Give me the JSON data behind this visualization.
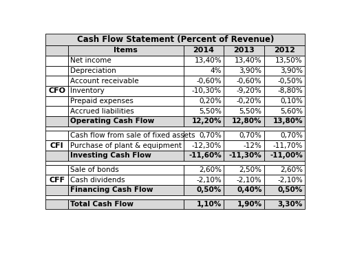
{
  "title": "Cash Flow Statement (Percent of Revenue)",
  "col_headers": [
    "Items",
    "2014",
    "2013",
    "2012"
  ],
  "sections": [
    {
      "label": "CFO",
      "rows": [
        [
          "Net income",
          "13,40%",
          "13,40%",
          "13,50%"
        ],
        [
          "Depreciation",
          "4%",
          "3,90%",
          "3,90%"
        ],
        [
          "Account receivable",
          "-0,60%",
          "-0,60%",
          "-0,50%"
        ],
        [
          "Inventory",
          "-10,30%",
          "-9,20%",
          "-8,80%"
        ],
        [
          "Prepaid expenses",
          "0,20%",
          "-0,20%",
          "0,10%"
        ],
        [
          "Accrued liabilities",
          "5,50%",
          "5,50%",
          "5,60%"
        ],
        [
          "Operating Cash Flow",
          "12,20%",
          "12,80%",
          "13,80%"
        ]
      ]
    },
    {
      "label": "CFI",
      "rows": [
        [
          "Cash flow from sale of fixed assets",
          "0,70%",
          "0,70%",
          "0,70%"
        ],
        [
          "Purchase of plant & equipment",
          "-12,30%",
          "-12%",
          "-11,70%"
        ],
        [
          "Investing Cash Flow",
          "-11,60%",
          "-11,30%",
          "-11,00%"
        ]
      ]
    },
    {
      "label": "CFF",
      "rows": [
        [
          "Sale of bonds",
          "2,60%",
          "2,50%",
          "2,60%"
        ],
        [
          "Cash dividends",
          "-2,10%",
          "-2,10%",
          "-2,10%"
        ],
        [
          "Financing Cash Flow",
          "0,50%",
          "0,40%",
          "0,50%"
        ]
      ]
    },
    {
      "label": "",
      "rows": [
        [
          "Total Cash Flow",
          "1,10%",
          "1,90%",
          "3,30%"
        ]
      ]
    }
  ],
  "header_bg": "#D9D9D9",
  "subtotal_bg": "#D9D9D9",
  "total_bg": "#D9D9D9",
  "normal_bg": "#FFFFFF",
  "gap_bg": "#FFFFFF",
  "border_color": "#000000",
  "text_color": "#000000",
  "title_fontsize": 8.5,
  "header_fontsize": 8,
  "cell_fontsize": 7.5,
  "label_fontsize": 8
}
